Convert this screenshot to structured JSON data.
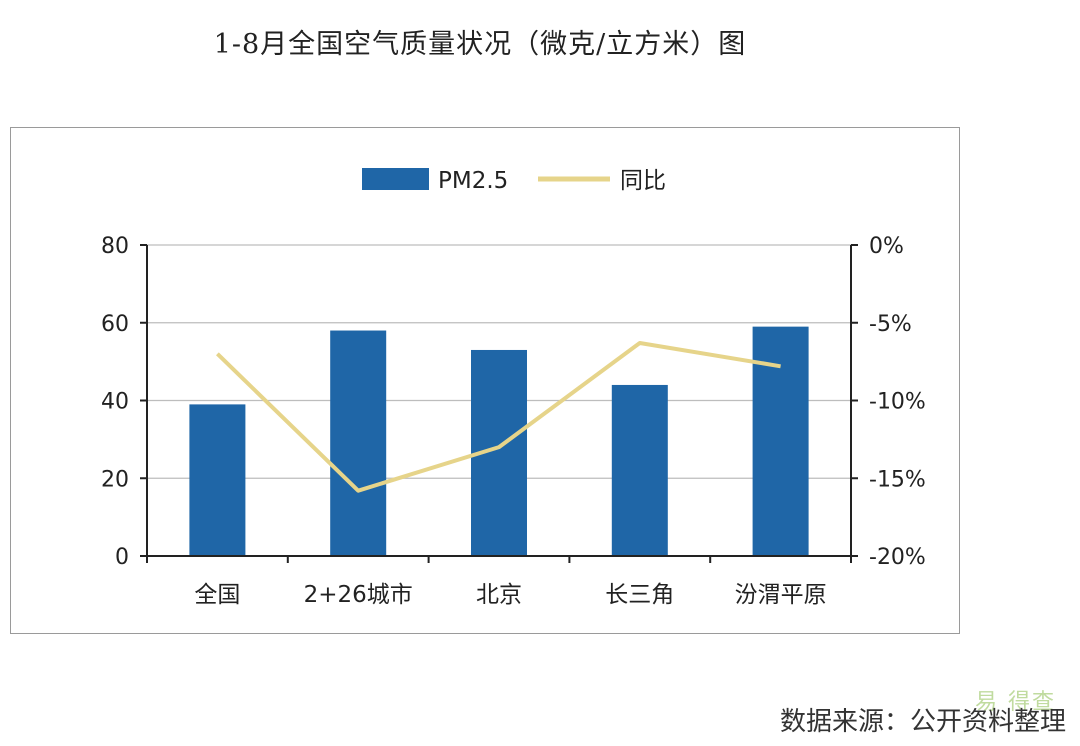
{
  "title": "1-8月全国空气质量状况（微克/立方米）图",
  "source": "数据来源：公开资料整理",
  "watermark": "易  得查",
  "colors": {
    "bar": "#1f66a7",
    "line": "#e6d48a",
    "axis": "#222222",
    "grid": "#bdbdbd"
  },
  "chart_data": {
    "type": "bar",
    "categories": [
      "全国",
      "2+26城市",
      "北京",
      "长三角",
      "汾渭平原"
    ],
    "series": [
      {
        "name": "PM2.5",
        "type": "bar",
        "axis": "left",
        "values": [
          39,
          58,
          53,
          44,
          59
        ]
      },
      {
        "name": "同比",
        "type": "line",
        "axis": "right",
        "values": [
          -7.0,
          -15.8,
          -13.0,
          -6.3,
          -7.8
        ]
      }
    ],
    "ylim": [
      0,
      80
    ],
    "yticks": [
      "0",
      "20",
      "40",
      "60",
      "80"
    ],
    "y2lim": [
      -20,
      0
    ],
    "y2ticks": [
      "-20%",
      "-15%",
      "-10%",
      "-5%",
      "0%"
    ],
    "grid": true,
    "legend_position": "top-center"
  }
}
